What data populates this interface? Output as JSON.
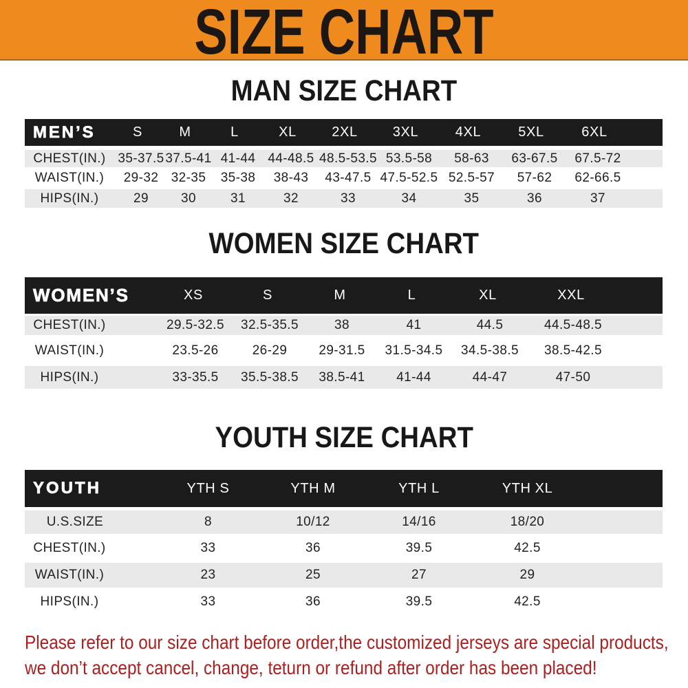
{
  "banner": {
    "title": "SIZE CHART"
  },
  "sections": [
    {
      "title": "MAN SIZE CHART"
    },
    {
      "title": "WOMEN SIZE CHART"
    },
    {
      "title": "YOUTH SIZE CHART"
    }
  ],
  "chart_data": [
    {
      "type": "table",
      "title": "MAN SIZE CHART",
      "header": [
        "MEN’S",
        "S",
        "M",
        "L",
        "XL",
        "2XL",
        "3XL",
        "4XL",
        "5XL",
        "6XL"
      ],
      "rows": [
        [
          "CHEST(IN.)",
          "35-37.5",
          "37.5-41",
          "41-44",
          "44-48.5",
          "48.5-53.5",
          "53.5-58",
          "58-63",
          "63-67.5",
          "67.5-72"
        ],
        [
          "WAIST(IN.)",
          "29-32",
          "32-35",
          "35-38",
          "38-43",
          "43-47.5",
          "47.5-52.5",
          "52.5-57",
          "57-62",
          "62-66.5"
        ],
        [
          "HIPS(IN.)",
          "29",
          "30",
          "31",
          "32",
          "33",
          "34",
          "35",
          "36",
          "37"
        ]
      ]
    },
    {
      "type": "table",
      "title": "WOMEN SIZE CHART",
      "header": [
        "WOMEN’S",
        "XS",
        "S",
        "M",
        "L",
        "XL",
        "XXL"
      ],
      "rows": [
        [
          "CHEST(IN.)",
          "29.5-32.5",
          "32.5-35.5",
          "38",
          "41",
          "44.5",
          "44.5-48.5"
        ],
        [
          "WAIST(IN.)",
          "23.5-26",
          "26-29",
          "29-31.5",
          "31.5-34.5",
          "34.5-38.5",
          "38.5-42.5"
        ],
        [
          "HIPS(IN.)",
          "33-35.5",
          "35.5-38.5",
          "38.5-41",
          "41-44",
          "44-47",
          "47-50"
        ]
      ]
    },
    {
      "type": "table",
      "title": "YOUTH SIZE CHART",
      "header": [
        "YOUTH",
        "YTH S",
        "YTH M",
        "YTH L",
        "YTH XL"
      ],
      "rows": [
        [
          "U.S.SIZE",
          "8",
          "10/12",
          "14/16",
          "18/20"
        ],
        [
          "CHEST(IN.)",
          "33",
          "36",
          "39.5",
          "42.5"
        ],
        [
          "WAIST(IN.)",
          "23",
          "25",
          "27",
          "29"
        ],
        [
          "HIPS(IN.)",
          "33",
          "36",
          "39.5",
          "42.5"
        ]
      ]
    }
  ],
  "footnote": {
    "line1": "Please refer to our size chart before order,the customized jerseys are special products,",
    "line2": "we don’t accept cancel, change, teturn or refund after order has been placed!"
  },
  "colors": {
    "banner_bg": "#EF8A1E",
    "banner_text": "#1c1712",
    "table_header_bg": "#1b1b1b",
    "table_header_text": "#ffffff",
    "row_alt_bg": "#e9e9e9",
    "row_text": "#222222",
    "footnote_text": "#AC1F1F"
  }
}
